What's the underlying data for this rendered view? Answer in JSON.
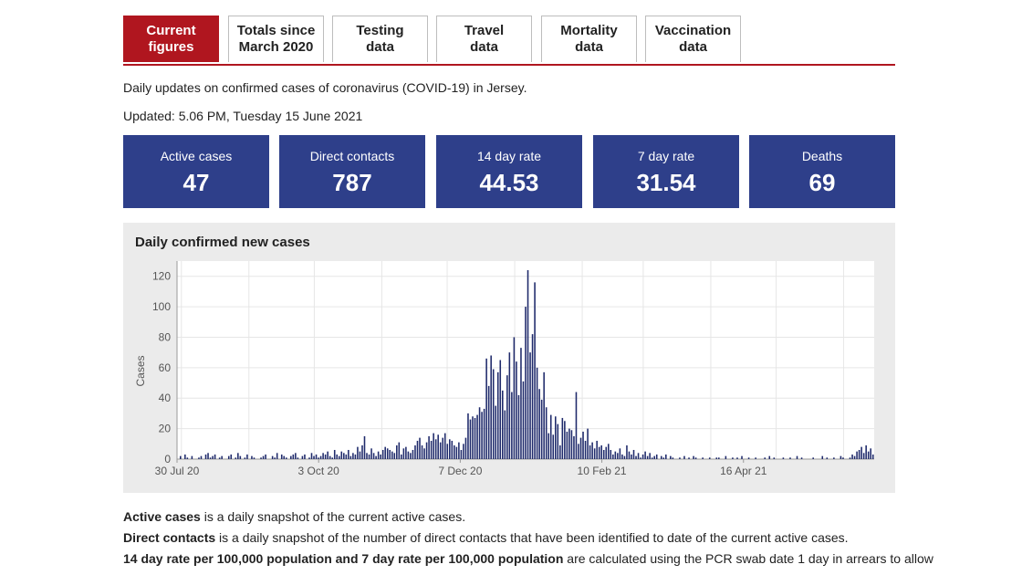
{
  "tabs": [
    {
      "label_line1": "Current",
      "label_line2": "figures",
      "active": true
    },
    {
      "label_line1": "Totals since",
      "label_line2": "March 2020",
      "active": false
    },
    {
      "label_line1": "Testing",
      "label_line2": "data",
      "active": false
    },
    {
      "label_line1": "Travel",
      "label_line2": "data",
      "active": false
    },
    {
      "label_line1": "Mortality",
      "label_line2": "data",
      "active": false
    },
    {
      "label_line1": "Vaccination",
      "label_line2": "data",
      "active": false
    }
  ],
  "intro_text": "Daily updates on confirmed cases of coronavirus (COVID-19) in Jersey.",
  "updated_text": "Updated: 5.06 PM, Tuesday 15 June 2021",
  "stats": [
    {
      "label": "Active cases",
      "value": "47"
    },
    {
      "label": "Direct contacts",
      "value": "787"
    },
    {
      "label": "14 day rate",
      "value": "44.53"
    },
    {
      "label": "7 day rate",
      "value": "31.54"
    },
    {
      "label": "Deaths",
      "value": "69"
    }
  ],
  "colors": {
    "accent": "#b0161f",
    "stat_bg": "#2e3f8a",
    "bar": "#1f2a6b",
    "panel": "#ebebeb"
  },
  "chart_data": {
    "type": "bar",
    "title": "Daily confirmed new cases",
    "ylabel": "Cases",
    "xlabel": "",
    "ylim": [
      0,
      130
    ],
    "yticks": [
      0,
      20,
      40,
      60,
      80,
      100,
      120
    ],
    "xtick_labels": [
      "30 Jul 20",
      "3 Oct 20",
      "7 Dec 20",
      "10 Feb 21",
      "16 Apr 21"
    ],
    "grid": true,
    "x_start": "2020-07-30",
    "x_end": "2021-06-15",
    "values": [
      0,
      2,
      0,
      3,
      1,
      0,
      2,
      0,
      0,
      1,
      2,
      0,
      3,
      4,
      1,
      2,
      3,
      0,
      1,
      2,
      0,
      0,
      2,
      3,
      0,
      1,
      4,
      2,
      0,
      1,
      3,
      0,
      2,
      1,
      0,
      0,
      1,
      2,
      3,
      0,
      0,
      2,
      1,
      4,
      0,
      3,
      2,
      1,
      0,
      2,
      3,
      4,
      1,
      0,
      2,
      3,
      0,
      1,
      4,
      2,
      3,
      1,
      2,
      4,
      3,
      5,
      2,
      1,
      6,
      3,
      2,
      5,
      4,
      3,
      6,
      2,
      4,
      3,
      8,
      5,
      9,
      15,
      4,
      3,
      7,
      4,
      2,
      5,
      3,
      6,
      8,
      7,
      6,
      5,
      4,
      9,
      11,
      3,
      7,
      8,
      5,
      4,
      6,
      9,
      12,
      14,
      9,
      7,
      11,
      15,
      12,
      17,
      13,
      16,
      11,
      14,
      17,
      10,
      13,
      12,
      9,
      8,
      11,
      6,
      10,
      14,
      30,
      26,
      28,
      27,
      29,
      34,
      31,
      33,
      66,
      48,
      68,
      59,
      35,
      57,
      65,
      45,
      32,
      55,
      70,
      44,
      80,
      64,
      42,
      73,
      51,
      100,
      124,
      70,
      82,
      116,
      60,
      46,
      39,
      57,
      34,
      17,
      29,
      16,
      28,
      23,
      9,
      27,
      25,
      18,
      20,
      19,
      15,
      44,
      10,
      14,
      18,
      12,
      20,
      9,
      11,
      7,
      12,
      8,
      9,
      6,
      8,
      10,
      6,
      3,
      5,
      4,
      7,
      3,
      2,
      9,
      5,
      3,
      6,
      2,
      4,
      1,
      3,
      5,
      2,
      4,
      1,
      2,
      3,
      0,
      2,
      1,
      3,
      0,
      2,
      1,
      0,
      0,
      1,
      0,
      2,
      0,
      1,
      0,
      2,
      1,
      0,
      0,
      1,
      0,
      0,
      1,
      0,
      0,
      1,
      1,
      0,
      0,
      2,
      0,
      0,
      1,
      0,
      1,
      0,
      2,
      0,
      0,
      1,
      0,
      0,
      1,
      0,
      0,
      0,
      1,
      0,
      2,
      0,
      1,
      0,
      0,
      0,
      1,
      0,
      0,
      1,
      0,
      0,
      2,
      0,
      1,
      0,
      0,
      0,
      0,
      1,
      0,
      0,
      0,
      2,
      0,
      1,
      0,
      0,
      1,
      0,
      0,
      2,
      1,
      0,
      0,
      1,
      3,
      2,
      5,
      6,
      8,
      4,
      9,
      5,
      7,
      3
    ]
  },
  "notes": [
    {
      "bold": "Active cases",
      "text": " is a daily snapshot of the current active cases."
    },
    {
      "bold": "Direct contacts",
      "text": " is a daily snapshot of the number of direct contacts that have been identified to date of the current active cases."
    },
    {
      "bold": "14 day rate per 100,000 population and 7 day rate per 100,000 population",
      "text": " are calculated using the PCR swab date 1 day in arrears to allow"
    }
  ]
}
